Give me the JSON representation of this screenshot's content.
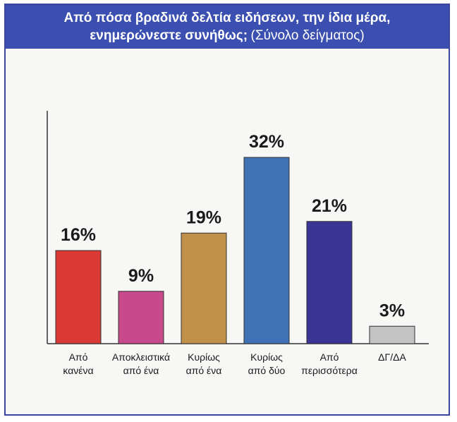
{
  "chart_data": {
    "type": "bar",
    "title": "Από πόσα βραδινά δελτία ειδήσεων, την ίδια μέρα, ενημερώνεστε συνήθως;",
    "subtitle": "(Σύνολο δείγματος)",
    "categories": [
      [
        "Από",
        "κανένα"
      ],
      [
        "Αποκλειστικά",
        "από ένα"
      ],
      [
        "Κυρίως",
        "από ένα"
      ],
      [
        "Κυρίως",
        "από δύο"
      ],
      [
        "Από",
        "περισσότερα"
      ],
      [
        "ΔΓ/ΔΑ"
      ]
    ],
    "values": [
      16,
      9,
      19,
      32,
      21,
      3
    ],
    "value_labels": [
      "16%",
      "9%",
      "19%",
      "32%",
      "21%",
      "3%"
    ],
    "colors": [
      "#d93a35",
      "#c74a8c",
      "#c0904a",
      "#3f73b5",
      "#3a3595",
      "#c4c4c4"
    ],
    "ylim": [
      0,
      40
    ],
    "grid": false
  }
}
